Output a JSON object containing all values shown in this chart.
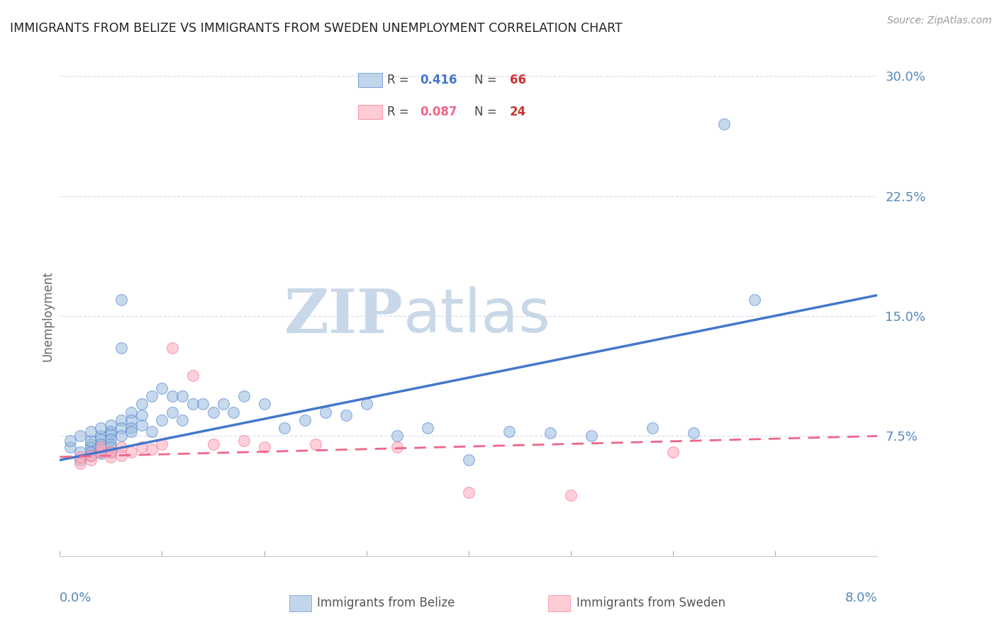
{
  "title": "IMMIGRANTS FROM BELIZE VS IMMIGRANTS FROM SWEDEN UNEMPLOYMENT CORRELATION CHART",
  "source_text": "Source: ZipAtlas.com",
  "ylabel": "Unemployment",
  "x_min": 0.0,
  "x_max": 0.08,
  "y_min": 0.0,
  "y_max": 0.3,
  "yticks": [
    0.075,
    0.15,
    0.225,
    0.3
  ],
  "ytick_labels": [
    "7.5%",
    "15.0%",
    "22.5%",
    "30.0%"
  ],
  "belize_R": 0.416,
  "belize_N": 66,
  "sweden_R": 0.087,
  "sweden_N": 24,
  "belize_color": "#99BBDD",
  "sweden_color": "#FFAABB",
  "belize_line_color": "#4477CC",
  "sweden_line_color": "#EE6688",
  "background_color": "#FFFFFF",
  "grid_color": "#DDDDEE",
  "title_color": "#222222",
  "axis_label_color": "#5588BB",
  "belize_x": [
    0.001,
    0.001,
    0.002,
    0.002,
    0.002,
    0.003,
    0.003,
    0.003,
    0.003,
    0.003,
    0.003,
    0.004,
    0.004,
    0.004,
    0.004,
    0.004,
    0.004,
    0.005,
    0.005,
    0.005,
    0.005,
    0.005,
    0.005,
    0.005,
    0.006,
    0.006,
    0.006,
    0.006,
    0.006,
    0.007,
    0.007,
    0.007,
    0.007,
    0.008,
    0.008,
    0.008,
    0.009,
    0.009,
    0.01,
    0.01,
    0.011,
    0.011,
    0.012,
    0.012,
    0.013,
    0.014,
    0.015,
    0.016,
    0.017,
    0.018,
    0.02,
    0.022,
    0.024,
    0.026,
    0.028,
    0.03,
    0.033,
    0.036,
    0.04,
    0.044,
    0.048,
    0.052,
    0.058,
    0.062,
    0.065,
    0.068
  ],
  "belize_y": [
    0.068,
    0.072,
    0.065,
    0.06,
    0.075,
    0.07,
    0.068,
    0.065,
    0.063,
    0.072,
    0.078,
    0.075,
    0.073,
    0.07,
    0.067,
    0.064,
    0.08,
    0.082,
    0.078,
    0.076,
    0.073,
    0.07,
    0.068,
    0.065,
    0.16,
    0.13,
    0.085,
    0.08,
    0.075,
    0.09,
    0.085,
    0.08,
    0.078,
    0.095,
    0.088,
    0.082,
    0.1,
    0.078,
    0.105,
    0.085,
    0.1,
    0.09,
    0.1,
    0.085,
    0.095,
    0.095,
    0.09,
    0.095,
    0.09,
    0.1,
    0.095,
    0.08,
    0.085,
    0.09,
    0.088,
    0.095,
    0.075,
    0.08,
    0.06,
    0.078,
    0.077,
    0.075,
    0.08,
    0.077,
    0.27,
    0.16
  ],
  "sweden_x": [
    0.002,
    0.002,
    0.003,
    0.003,
    0.004,
    0.004,
    0.005,
    0.005,
    0.006,
    0.006,
    0.007,
    0.008,
    0.009,
    0.01,
    0.011,
    0.013,
    0.015,
    0.018,
    0.02,
    0.025,
    0.033,
    0.04,
    0.05,
    0.06
  ],
  "sweden_y": [
    0.058,
    0.062,
    0.06,
    0.063,
    0.065,
    0.068,
    0.062,
    0.065,
    0.068,
    0.063,
    0.065,
    0.068,
    0.067,
    0.07,
    0.13,
    0.113,
    0.07,
    0.072,
    0.068,
    0.07,
    0.068,
    0.04,
    0.038,
    0.065
  ],
  "belize_trend": [
    0.0,
    0.08,
    0.06,
    0.163
  ],
  "sweden_trend": [
    0.0,
    0.08,
    0.062,
    0.075
  ],
  "watermark_zip": "ZIP",
  "watermark_atlas": "atlas",
  "watermark_color": "#C8D8E8"
}
